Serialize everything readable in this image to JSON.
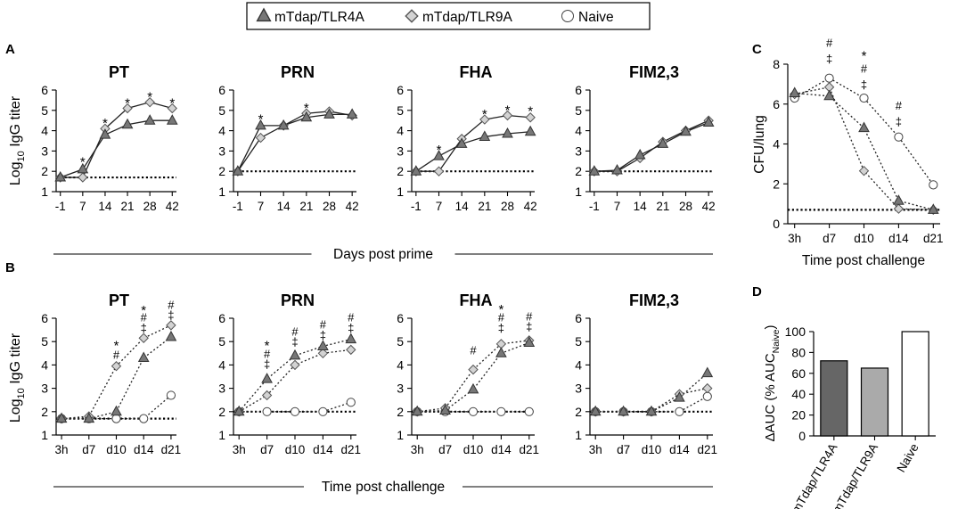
{
  "legend": {
    "entries": [
      {
        "key": "tlr4",
        "label": "mTdap/TLR4A",
        "marker": "triangle",
        "fill": "#777777"
      },
      {
        "key": "tlr9",
        "label": "mTdap/TLR9A",
        "marker": "diamond",
        "fill": "#d3d3d3"
      },
      {
        "key": "naive",
        "label": "Naive",
        "marker": "circle",
        "fill": "#ffffff"
      }
    ]
  },
  "panel_letters": {
    "A": "A",
    "B": "B",
    "C": "C",
    "D": "D"
  },
  "panel_A": {
    "ylabel_main": "Log",
    "ylabel_sub": "10",
    "ylabel_rest": " IgG titer",
    "xlabel": "Days post prime"
  },
  "panel_B": {
    "ylabel_main": "Log",
    "ylabel_sub": "10",
    "ylabel_rest": " IgG titer",
    "xlabel": "Time post challenge"
  },
  "chart_data": [
    {
      "id": "A-PT",
      "panel": "A",
      "type": "line",
      "title": "PT",
      "categories": [
        "-1",
        "7",
        "14",
        "21",
        "28",
        "42"
      ],
      "ylim": [
        1,
        6
      ],
      "yticks": [
        1,
        2,
        3,
        4,
        5,
        6
      ],
      "baseline": 1.7,
      "style": "solid",
      "series": [
        {
          "key": "tlr4",
          "name": "mTdap/TLR4A",
          "values": [
            1.7,
            2.1,
            3.8,
            4.3,
            4.5,
            4.5
          ]
        },
        {
          "key": "tlr9",
          "name": "mTdap/TLR9A",
          "values": [
            1.7,
            1.7,
            4.1,
            5.1,
            5.4,
            5.1
          ]
        }
      ],
      "annotations": [
        {
          "x": 1,
          "y": 2.6,
          "text": "*"
        },
        {
          "x": 2,
          "y": 4.5,
          "text": "*"
        },
        {
          "x": 3,
          "y": 5.5,
          "text": "*"
        },
        {
          "x": 4,
          "y": 5.8,
          "text": "*"
        },
        {
          "x": 5,
          "y": 5.5,
          "text": "*"
        }
      ]
    },
    {
      "id": "A-PRN",
      "panel": "A",
      "type": "line",
      "title": "PRN",
      "categories": [
        "-1",
        "7",
        "14",
        "21",
        "28",
        "42"
      ],
      "ylim": [
        1,
        6
      ],
      "yticks": [
        1,
        2,
        3,
        4,
        5,
        6
      ],
      "baseline": 2.0,
      "style": "solid",
      "series": [
        {
          "key": "tlr4",
          "name": "mTdap/TLR4A",
          "values": [
            2.0,
            4.25,
            4.25,
            4.65,
            4.8,
            4.8
          ]
        },
        {
          "key": "tlr9",
          "name": "mTdap/TLR9A",
          "values": [
            2.0,
            3.65,
            4.25,
            4.85,
            4.95,
            4.75
          ]
        }
      ],
      "annotations": [
        {
          "x": 1,
          "y": 4.7,
          "text": "*"
        },
        {
          "x": 3,
          "y": 5.25,
          "text": "*"
        }
      ]
    },
    {
      "id": "A-FHA",
      "panel": "A",
      "type": "line",
      "title": "FHA",
      "categories": [
        "-1",
        "7",
        "14",
        "21",
        "28",
        "42"
      ],
      "ylim": [
        1,
        6
      ],
      "yticks": [
        1,
        2,
        3,
        4,
        5,
        6
      ],
      "baseline": 2.0,
      "style": "solid",
      "series": [
        {
          "key": "tlr4",
          "name": "mTdap/TLR4A",
          "values": [
            2.0,
            2.75,
            3.35,
            3.7,
            3.85,
            3.95
          ]
        },
        {
          "key": "tlr9",
          "name": "mTdap/TLR9A",
          "values": [
            2.0,
            2.0,
            3.6,
            4.55,
            4.75,
            4.65
          ]
        }
      ],
      "annotations": [
        {
          "x": 1,
          "y": 3.2,
          "text": "*"
        },
        {
          "x": 3,
          "y": 4.95,
          "text": "*"
        },
        {
          "x": 4,
          "y": 5.15,
          "text": "*"
        },
        {
          "x": 5,
          "y": 5.1,
          "text": "*"
        }
      ]
    },
    {
      "id": "A-FIM",
      "panel": "A",
      "type": "line",
      "title": "FIM2,3",
      "categories": [
        "-1",
        "7",
        "14",
        "21",
        "28",
        "42"
      ],
      "ylim": [
        1,
        6
      ],
      "yticks": [
        1,
        2,
        3,
        4,
        5,
        6
      ],
      "baseline": 2.0,
      "style": "solid",
      "series": [
        {
          "key": "tlr4",
          "name": "mTdap/TLR4A",
          "values": [
            2.0,
            2.05,
            2.8,
            3.35,
            3.95,
            4.4
          ]
        },
        {
          "key": "tlr9",
          "name": "mTdap/TLR9A",
          "values": [
            2.0,
            2.0,
            2.65,
            3.45,
            4.0,
            4.5
          ]
        }
      ],
      "annotations": []
    },
    {
      "id": "B-PT",
      "panel": "B",
      "type": "line",
      "title": "PT",
      "categories": [
        "3h",
        "d7",
        "d10",
        "d14",
        "d21"
      ],
      "ylim": [
        1,
        6
      ],
      "yticks": [
        1,
        2,
        3,
        4,
        5,
        6
      ],
      "baseline": 1.7,
      "style": "dotted",
      "series": [
        {
          "key": "tlr4",
          "name": "mTdap/TLR4A",
          "values": [
            1.7,
            1.7,
            2.0,
            4.3,
            5.2
          ]
        },
        {
          "key": "tlr9",
          "name": "mTdap/TLR9A",
          "values": [
            1.7,
            1.8,
            3.95,
            5.15,
            5.7
          ]
        },
        {
          "key": "naive",
          "name": "Naive",
          "values": [
            1.7,
            1.7,
            1.7,
            1.7,
            2.7
          ]
        }
      ],
      "annotations": [
        {
          "x": 2,
          "y": 4.95,
          "text": "*"
        },
        {
          "x": 2,
          "y": 4.45,
          "text": "#"
        },
        {
          "x": 3,
          "y": 6.45,
          "text": "*"
        },
        {
          "x": 3,
          "y": 6.05,
          "text": "#"
        },
        {
          "x": 3,
          "y": 5.6,
          "text": "‡"
        },
        {
          "x": 4,
          "y": 6.6,
          "text": "#"
        },
        {
          "x": 4,
          "y": 6.15,
          "text": "‡"
        }
      ]
    },
    {
      "id": "B-PRN",
      "panel": "B",
      "type": "line",
      "title": "PRN",
      "categories": [
        "3h",
        "d7",
        "d10",
        "d14",
        "d21"
      ],
      "ylim": [
        1,
        6
      ],
      "yticks": [
        1,
        2,
        3,
        4,
        5,
        6
      ],
      "baseline": 2.0,
      "style": "dotted",
      "series": [
        {
          "key": "tlr4",
          "name": "mTdap/TLR4A",
          "values": [
            2.0,
            3.4,
            4.4,
            4.8,
            5.1
          ]
        },
        {
          "key": "tlr9",
          "name": "mTdap/TLR9A",
          "values": [
            2.0,
            2.7,
            4.0,
            4.5,
            4.65
          ]
        },
        {
          "key": "naive",
          "name": "Naive",
          "values": [
            2.0,
            2.0,
            2.0,
            2.0,
            2.4
          ]
        }
      ],
      "annotations": [
        {
          "x": 1,
          "y": 4.95,
          "text": "*"
        },
        {
          "x": 1,
          "y": 4.5,
          "text": "#"
        },
        {
          "x": 1,
          "y": 4.05,
          "text": "‡"
        },
        {
          "x": 2,
          "y": 5.45,
          "text": "#"
        },
        {
          "x": 2,
          "y": 5.0,
          "text": "‡"
        },
        {
          "x": 3,
          "y": 5.75,
          "text": "#"
        },
        {
          "x": 3,
          "y": 5.3,
          "text": "‡"
        },
        {
          "x": 4,
          "y": 6.05,
          "text": "#"
        },
        {
          "x": 4,
          "y": 5.6,
          "text": "‡"
        }
      ]
    },
    {
      "id": "B-FHA",
      "panel": "B",
      "type": "line",
      "title": "FHA",
      "categories": [
        "3h",
        "d7",
        "d10",
        "d14",
        "d21"
      ],
      "ylim": [
        1,
        6
      ],
      "yticks": [
        1,
        2,
        3,
        4,
        5,
        6
      ],
      "baseline": 2.0,
      "style": "dotted",
      "series": [
        {
          "key": "tlr4",
          "name": "mTdap/TLR4A",
          "values": [
            2.0,
            2.05,
            2.95,
            4.5,
            4.95
          ]
        },
        {
          "key": "tlr9",
          "name": "mTdap/TLR9A",
          "values": [
            2.0,
            2.15,
            3.8,
            4.9,
            5.05
          ]
        },
        {
          "key": "naive",
          "name": "Naive",
          "values": [
            2.0,
            2.0,
            2.0,
            2.0,
            2.0
          ]
        }
      ],
      "annotations": [
        {
          "x": 2,
          "y": 4.65,
          "text": "#"
        },
        {
          "x": 3,
          "y": 6.5,
          "text": "*"
        },
        {
          "x": 3,
          "y": 6.05,
          "text": "#"
        },
        {
          "x": 3,
          "y": 5.6,
          "text": "‡"
        },
        {
          "x": 4,
          "y": 6.1,
          "text": "#"
        },
        {
          "x": 4,
          "y": 5.65,
          "text": "‡"
        }
      ]
    },
    {
      "id": "B-FIM",
      "panel": "B",
      "type": "line",
      "title": "FIM2,3",
      "categories": [
        "3h",
        "d7",
        "d10",
        "d14",
        "d21"
      ],
      "ylim": [
        1,
        6
      ],
      "yticks": [
        1,
        2,
        3,
        4,
        5,
        6
      ],
      "baseline": 2.0,
      "style": "dotted",
      "series": [
        {
          "key": "tlr4",
          "name": "mTdap/TLR4A",
          "values": [
            2.0,
            2.0,
            2.0,
            2.6,
            3.65
          ]
        },
        {
          "key": "tlr9",
          "name": "mTdap/TLR9A",
          "values": [
            2.0,
            2.0,
            2.0,
            2.75,
            3.0
          ]
        },
        {
          "key": "naive",
          "name": "Naive",
          "values": [
            2.0,
            2.0,
            2.0,
            2.0,
            2.65
          ]
        }
      ],
      "annotations": []
    },
    {
      "id": "C",
      "panel": "C",
      "type": "line",
      "title": "",
      "categories": [
        "3h",
        "d7",
        "d10",
        "d14",
        "d21"
      ],
      "ylim": [
        0,
        8
      ],
      "yticks": [
        0,
        2,
        4,
        6,
        8
      ],
      "ylabel": "CFU/lung",
      "xlabel": "Time post challenge",
      "baseline": 0.7,
      "style": "dotted",
      "series": [
        {
          "key": "tlr4",
          "name": "mTdap/TLR4A",
          "values": [
            6.55,
            6.4,
            4.8,
            1.15,
            0.7
          ]
        },
        {
          "key": "tlr9",
          "name": "mTdap/TLR9A",
          "values": [
            6.5,
            6.85,
            2.65,
            0.75,
            0.7
          ]
        },
        {
          "key": "naive",
          "name": "Naive",
          "values": [
            6.3,
            7.3,
            6.3,
            4.35,
            1.95
          ]
        }
      ],
      "annotations": [
        {
          "x": 1,
          "y": 9.1,
          "text": "#"
        },
        {
          "x": 1,
          "y": 8.3,
          "text": "‡"
        },
        {
          "x": 2,
          "y": 8.55,
          "text": "*"
        },
        {
          "x": 2,
          "y": 7.8,
          "text": "#"
        },
        {
          "x": 2,
          "y": 7.0,
          "text": "‡"
        },
        {
          "x": 3,
          "y": 5.95,
          "text": "#"
        },
        {
          "x": 3,
          "y": 5.15,
          "text": "‡"
        }
      ]
    },
    {
      "id": "D",
      "panel": "D",
      "type": "bar",
      "title": "",
      "categories": [
        "mTdap/TLR4A",
        "mTdap/TLR9A",
        "Naive"
      ],
      "values": [
        72,
        65,
        100
      ],
      "colors": [
        "#666666",
        "#aaaaaa",
        "#ffffff"
      ],
      "ylim": [
        0,
        100
      ],
      "yticks": [
        0,
        20,
        40,
        60,
        80,
        100
      ],
      "ylabel_main": "ΔAUC (% AUC",
      "ylabel_sub": "Naive",
      "ylabel_close": ")"
    }
  ]
}
